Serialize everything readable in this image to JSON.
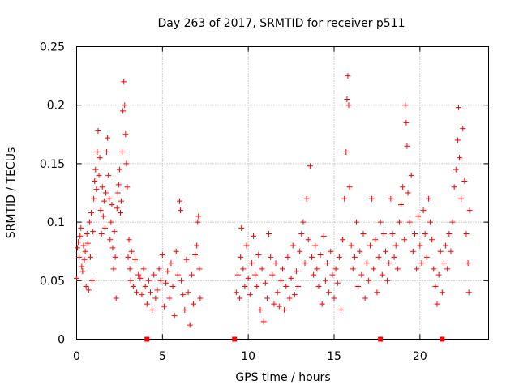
{
  "chart_data": {
    "type": "scatter",
    "title": "Day 263 of 2017, SRMTID for receiver p511",
    "xlabel": "GPS time / hours",
    "ylabel": "SRMTID / TECUs",
    "xlim": [
      0,
      24
    ],
    "ylim": [
      0,
      0.25
    ],
    "x_ticks": [
      0,
      5,
      10,
      15,
      20
    ],
    "x_tick_labels": [
      "0",
      "5",
      "10",
      "15",
      "20"
    ],
    "y_ticks": [
      0,
      0.05,
      0.1,
      0.15,
      0.2,
      0.25
    ],
    "y_tick_labels": [
      "0",
      "0.05",
      "0.1",
      "0.15",
      "0.2",
      "0.25"
    ],
    "grid": true,
    "marker": "+",
    "color": "#ff0000",
    "series": [
      {
        "name": "SRMTID",
        "points": [
          [
            0.0,
            0.052
          ],
          [
            0.05,
            0.078
          ],
          [
            0.1,
            0.083
          ],
          [
            0.15,
            0.07
          ],
          [
            0.2,
            0.088
          ],
          [
            0.25,
            0.095
          ],
          [
            0.3,
            0.062
          ],
          [
            0.35,
            0.058
          ],
          [
            0.4,
            0.08
          ],
          [
            0.45,
            0.068
          ],
          [
            0.5,
            0.075
          ],
          [
            0.55,
            0.045
          ],
          [
            0.6,
            0.09
          ],
          [
            0.65,
            0.082
          ],
          [
            0.7,
            0.042
          ],
          [
            0.75,
            0.1
          ],
          [
            0.8,
            0.07
          ],
          [
            0.85,
            0.108
          ],
          [
            0.9,
            0.05
          ],
          [
            0.95,
            0.092
          ],
          [
            1.0,
            0.12
          ],
          [
            1.05,
            0.135
          ],
          [
            1.1,
            0.145
          ],
          [
            1.15,
            0.128
          ],
          [
            1.2,
            0.16
          ],
          [
            1.25,
            0.178
          ],
          [
            1.3,
            0.14
          ],
          [
            1.35,
            0.155
          ],
          [
            1.4,
            0.11
          ],
          [
            1.45,
            0.09
          ],
          [
            1.5,
            0.13
          ],
          [
            1.55,
            0.105
          ],
          [
            1.6,
            0.118
          ],
          [
            1.65,
            0.095
          ],
          [
            1.7,
            0.125
          ],
          [
            1.75,
            0.16
          ],
          [
            1.8,
            0.172
          ],
          [
            1.85,
            0.14
          ],
          [
            1.9,
            0.12
          ],
          [
            1.95,
            0.085
          ],
          [
            2.0,
            0.1
          ],
          [
            2.05,
            0.115
          ],
          [
            2.1,
            0.078
          ],
          [
            2.15,
            0.06
          ],
          [
            2.2,
            0.092
          ],
          [
            2.25,
            0.07
          ],
          [
            2.3,
            0.035
          ],
          [
            2.35,
            0.112
          ],
          [
            2.4,
            0.125
          ],
          [
            2.45,
            0.132
          ],
          [
            2.5,
            0.145
          ],
          [
            2.55,
            0.108
          ],
          [
            2.6,
            0.118
          ],
          [
            2.65,
            0.16
          ],
          [
            2.7,
            0.195
          ],
          [
            2.75,
            0.22
          ],
          [
            2.8,
            0.2
          ],
          [
            2.85,
            0.175
          ],
          [
            2.9,
            0.15
          ],
          [
            2.95,
            0.13
          ],
          [
            3.0,
            0.07
          ],
          [
            3.05,
            0.085
          ],
          [
            3.1,
            0.06
          ],
          [
            3.15,
            0.05
          ],
          [
            3.2,
            0.075
          ],
          [
            3.3,
            0.045
          ],
          [
            3.4,
            0.068
          ],
          [
            3.5,
            0.04
          ],
          [
            3.6,
            0.055
          ],
          [
            3.7,
            0.052
          ],
          [
            3.8,
            0.038
          ],
          [
            3.9,
            0.06
          ],
          [
            4.0,
            0.045
          ],
          [
            4.1,
            0.03
          ],
          [
            4.2,
            0.05
          ],
          [
            4.3,
            0.04
          ],
          [
            4.4,
            0.025
          ],
          [
            4.5,
            0.055
          ],
          [
            4.6,
            0.035
          ],
          [
            4.7,
            0.042
          ],
          [
            4.8,
            0.06
          ],
          [
            4.9,
            0.05
          ],
          [
            5.0,
            0.072
          ],
          [
            5.1,
            0.028
          ],
          [
            5.2,
            0.048
          ],
          [
            5.3,
            0.058
          ],
          [
            5.4,
            0.035
          ],
          [
            5.5,
            0.065
          ],
          [
            5.6,
            0.045
          ],
          [
            5.7,
            0.02
          ],
          [
            5.8,
            0.075
          ],
          [
            5.9,
            0.055
          ],
          [
            6.0,
            0.118
          ],
          [
            6.05,
            0.11
          ],
          [
            6.1,
            0.05
          ],
          [
            6.2,
            0.038
          ],
          [
            6.3,
            0.025
          ],
          [
            6.4,
            0.068
          ],
          [
            6.5,
            0.04
          ],
          [
            6.6,
            0.012
          ],
          [
            6.7,
            0.055
          ],
          [
            6.8,
            0.03
          ],
          [
            6.9,
            0.072
          ],
          [
            7.0,
            0.08
          ],
          [
            7.05,
            0.1
          ],
          [
            7.1,
            0.105
          ],
          [
            7.15,
            0.06
          ],
          [
            7.2,
            0.035
          ],
          [
            9.3,
            0.04
          ],
          [
            9.4,
            0.055
          ],
          [
            9.5,
            0.035
          ],
          [
            9.55,
            0.07
          ],
          [
            9.6,
            0.095
          ],
          [
            9.7,
            0.06
          ],
          [
            9.8,
            0.045
          ],
          [
            9.9,
            0.08
          ],
          [
            10.0,
            0.052
          ],
          [
            10.1,
            0.038
          ],
          [
            10.2,
            0.065
          ],
          [
            10.3,
            0.088
          ],
          [
            10.4,
            0.055
          ],
          [
            10.5,
            0.045
          ],
          [
            10.6,
            0.072
          ],
          [
            10.7,
            0.025
          ],
          [
            10.8,
            0.06
          ],
          [
            10.9,
            0.015
          ],
          [
            11.0,
            0.048
          ],
          [
            11.1,
            0.035
          ],
          [
            11.2,
            0.09
          ],
          [
            11.3,
            0.07
          ],
          [
            11.4,
            0.055
          ],
          [
            11.5,
            0.03
          ],
          [
            11.6,
            0.065
          ],
          [
            11.7,
            0.04
          ],
          [
            11.8,
            0.028
          ],
          [
            11.9,
            0.05
          ],
          [
            12.0,
            0.06
          ],
          [
            12.1,
            0.025
          ],
          [
            12.2,
            0.045
          ],
          [
            12.3,
            0.07
          ],
          [
            12.4,
            0.035
          ],
          [
            12.5,
            0.052
          ],
          [
            12.6,
            0.08
          ],
          [
            12.7,
            0.038
          ],
          [
            12.8,
            0.058
          ],
          [
            12.9,
            0.045
          ],
          [
            13.0,
            0.075
          ],
          [
            13.1,
            0.09
          ],
          [
            13.2,
            0.1
          ],
          [
            13.3,
            0.065
          ],
          [
            13.4,
            0.12
          ],
          [
            13.5,
            0.085
          ],
          [
            13.6,
            0.148
          ],
          [
            13.7,
            0.07
          ],
          [
            13.8,
            0.055
          ],
          [
            13.9,
            0.08
          ],
          [
            14.0,
            0.06
          ],
          [
            14.1,
            0.045
          ],
          [
            14.2,
            0.072
          ],
          [
            14.3,
            0.03
          ],
          [
            14.4,
            0.088
          ],
          [
            14.5,
            0.05
          ],
          [
            14.6,
            0.065
          ],
          [
            14.7,
            0.04
          ],
          [
            14.8,
            0.075
          ],
          [
            14.9,
            0.055
          ],
          [
            15.0,
            0.035
          ],
          [
            15.1,
            0.06
          ],
          [
            15.2,
            0.048
          ],
          [
            15.3,
            0.07
          ],
          [
            15.4,
            0.025
          ],
          [
            15.5,
            0.085
          ],
          [
            15.6,
            0.12
          ],
          [
            15.7,
            0.16
          ],
          [
            15.75,
            0.205
          ],
          [
            15.8,
            0.225
          ],
          [
            15.85,
            0.2
          ],
          [
            15.9,
            0.13
          ],
          [
            16.0,
            0.08
          ],
          [
            16.1,
            0.06
          ],
          [
            16.2,
            0.07
          ],
          [
            16.3,
            0.1
          ],
          [
            16.4,
            0.045
          ],
          [
            16.5,
            0.075
          ],
          [
            16.6,
            0.055
          ],
          [
            16.7,
            0.09
          ],
          [
            16.8,
            0.035
          ],
          [
            16.9,
            0.065
          ],
          [
            17.0,
            0.05
          ],
          [
            17.1,
            0.08
          ],
          [
            17.2,
            0.12
          ],
          [
            17.3,
            0.06
          ],
          [
            17.4,
            0.085
          ],
          [
            17.5,
            0.04
          ],
          [
            17.6,
            0.07
          ],
          [
            17.7,
            0.1
          ],
          [
            17.8,
            0.055
          ],
          [
            17.9,
            0.09
          ],
          [
            18.0,
            0.075
          ],
          [
            18.1,
            0.05
          ],
          [
            18.2,
            0.065
          ],
          [
            18.3,
            0.12
          ],
          [
            18.4,
            0.09
          ],
          [
            18.5,
            0.07
          ],
          [
            18.6,
            0.08
          ],
          [
            18.7,
            0.06
          ],
          [
            18.8,
            0.1
          ],
          [
            18.9,
            0.115
          ],
          [
            19.0,
            0.13
          ],
          [
            19.1,
            0.085
          ],
          [
            19.15,
            0.2
          ],
          [
            19.2,
            0.185
          ],
          [
            19.25,
            0.165
          ],
          [
            19.3,
            0.125
          ],
          [
            19.4,
            0.1
          ],
          [
            19.5,
            0.14
          ],
          [
            19.6,
            0.075
          ],
          [
            19.7,
            0.09
          ],
          [
            19.8,
            0.06
          ],
          [
            19.9,
            0.105
          ],
          [
            20.0,
            0.08
          ],
          [
            20.1,
            0.065
          ],
          [
            20.2,
            0.11
          ],
          [
            20.3,
            0.09
          ],
          [
            20.4,
            0.07
          ],
          [
            20.5,
            0.12
          ],
          [
            20.6,
            0.1
          ],
          [
            20.7,
            0.085
          ],
          [
            20.8,
            0.06
          ],
          [
            20.9,
            0.045
          ],
          [
            21.0,
            0.03
          ],
          [
            21.1,
            0.055
          ],
          [
            21.2,
            0.075
          ],
          [
            21.3,
            0.04
          ],
          [
            21.4,
            0.065
          ],
          [
            21.5,
            0.08
          ],
          [
            21.6,
            0.06
          ],
          [
            21.7,
            0.09
          ],
          [
            21.8,
            0.075
          ],
          [
            21.9,
            0.1
          ],
          [
            22.0,
            0.13
          ],
          [
            22.1,
            0.145
          ],
          [
            22.2,
            0.17
          ],
          [
            22.25,
            0.198
          ],
          [
            22.3,
            0.155
          ],
          [
            22.4,
            0.12
          ],
          [
            22.5,
            0.18
          ],
          [
            22.6,
            0.135
          ],
          [
            22.7,
            0.09
          ],
          [
            22.8,
            0.065
          ],
          [
            22.85,
            0.04
          ],
          [
            22.9,
            0.11
          ]
        ]
      },
      {
        "name": "gap markers",
        "marker": "square",
        "points": [
          [
            4.1,
            0.0
          ],
          [
            9.2,
            0.0
          ],
          [
            17.7,
            0.0
          ],
          [
            21.3,
            0.0
          ]
        ]
      }
    ]
  }
}
